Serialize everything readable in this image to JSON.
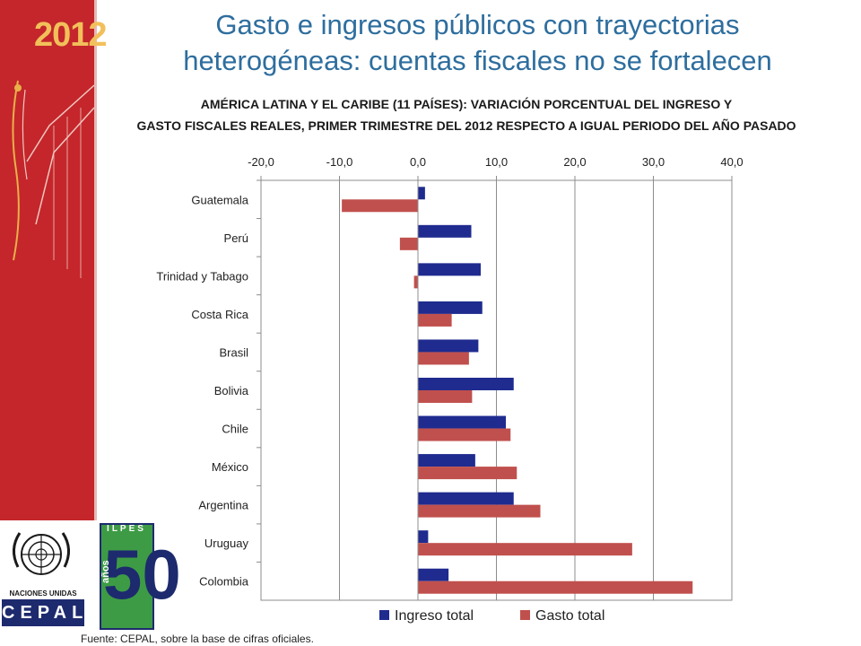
{
  "slide": {
    "title_lines": [
      "Gasto e ingresos públicos con trayectorias",
      "heterogéneas: cuentas fiscales no se fortalecen"
    ],
    "subtitle_lines": [
      "AMÉRICA LATINA  Y EL CARIBE (11 PAÍSES): VARIACIÓN PORCENTUAL DEL INGRESO Y",
      "GASTO FISCALES REALES, PRIMER TRIMESTRE DEL 2012 RESPECTO A IGUAL PERIODO DEL AÑO PASADO"
    ],
    "year_badge": "2012",
    "source": "Fuente: CEPAL, sobre la base de cifras oficiales.",
    "logo_un_name": "NACIONES UNIDAS",
    "logo_cepal": "CEPAL",
    "logo_ilpes": "ILPES",
    "logo_ilpes_num": "50",
    "logo_ilpes_anos": "años",
    "colors": {
      "band": "#c4262b",
      "title": "#2e6e9e",
      "ingreso": "#1f2b8f",
      "gasto": "#c0504d"
    }
  },
  "chart_data": {
    "type": "bar",
    "orientation": "horizontal",
    "categories": [
      "Guatemala",
      "Perú",
      "Trinidad y Tabago",
      "Costa Rica",
      "Brasil",
      "Bolivia",
      "Chile",
      "México",
      "Argentina",
      "Uruguay",
      "Colombia"
    ],
    "series": [
      {
        "name": "Ingreso total",
        "values": [
          0.9,
          6.8,
          8.0,
          8.2,
          7.7,
          12.2,
          11.2,
          7.3,
          12.2,
          1.3,
          3.9
        ]
      },
      {
        "name": "Gasto total",
        "values": [
          -9.7,
          -2.3,
          -0.5,
          4.3,
          6.5,
          6.9,
          11.8,
          12.6,
          15.6,
          27.3,
          35.0
        ]
      }
    ],
    "xlim": [
      -20,
      40
    ],
    "xticks": [
      -20,
      -10,
      0,
      10,
      20,
      30,
      40
    ],
    "tick_labels": [
      "-20,0",
      "-10,0",
      "0,0",
      "10,0",
      "20,0",
      "30,0",
      "40,0"
    ],
    "xaxis_position": "top",
    "grid": true,
    "legend": "bottom"
  }
}
